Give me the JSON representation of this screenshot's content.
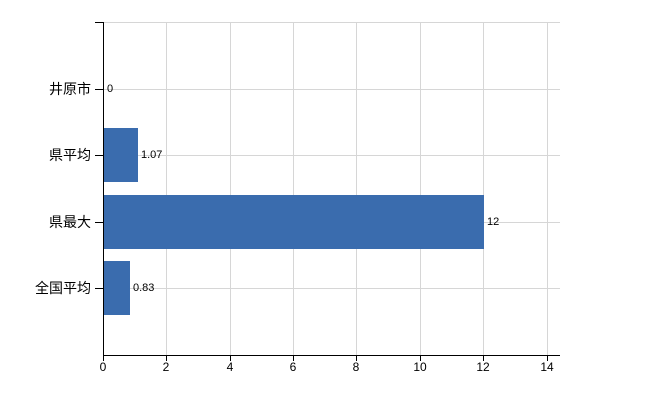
{
  "chart_data": {
    "type": "bar",
    "orientation": "horizontal",
    "title": "",
    "xlabel": "",
    "ylabel": "",
    "categories": [
      "井原市",
      "県平均",
      "県最大",
      "全国平均"
    ],
    "values": [
      0,
      1.07,
      12,
      0.83
    ],
    "value_labels": [
      "0",
      "1.07",
      "12",
      "0.83"
    ],
    "xlim": [
      0,
      14
    ],
    "x_ticks": [
      0,
      2,
      4,
      6,
      8,
      10,
      12,
      14
    ],
    "x_tick_labels": [
      "0",
      "2",
      "4",
      "6",
      "8",
      "10",
      "12",
      "14"
    ],
    "grid": true,
    "legend": false,
    "colors": {
      "bar": "#3a6cae",
      "grid": "#d6d6d6",
      "axis": "#000000",
      "text": "#000000",
      "background": "#ffffff"
    }
  }
}
